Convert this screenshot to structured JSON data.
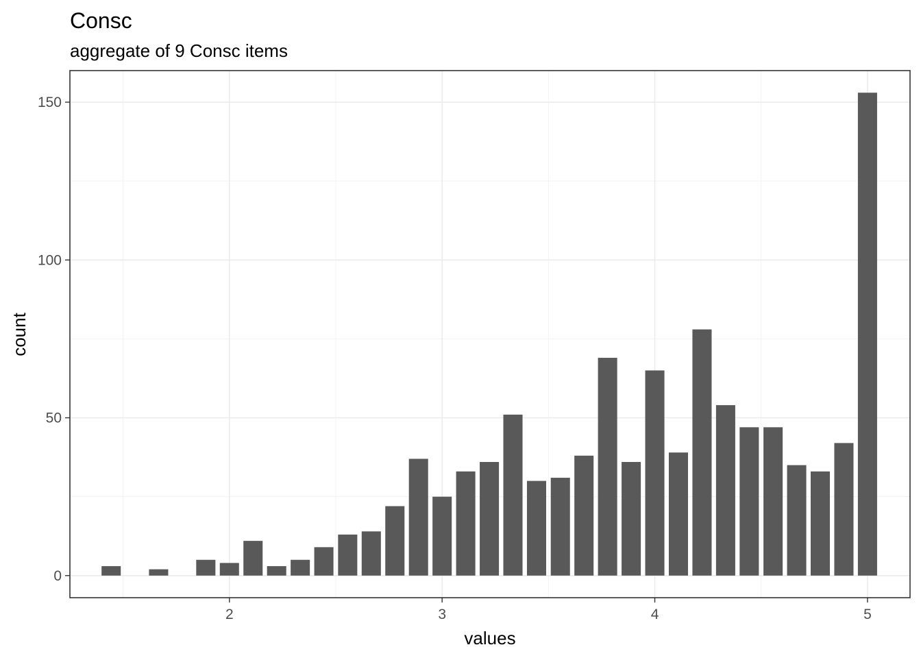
{
  "chart_data": {
    "type": "bar",
    "title": "Consc",
    "subtitle": "aggregate of 9 Consc items",
    "xlabel": "values",
    "ylabel": "count",
    "xlim": [
      1.25,
      5.2
    ],
    "ylim": [
      -7,
      160
    ],
    "x_ticks": [
      2,
      3,
      4,
      5
    ],
    "y_ticks": [
      0,
      50,
      100,
      150
    ],
    "bar_width": 0.1,
    "grid": true,
    "bar_color": "#595959",
    "x": [
      1.444,
      1.667,
      1.889,
      2.0,
      2.111,
      2.222,
      2.333,
      2.444,
      2.556,
      2.667,
      2.778,
      2.889,
      3.0,
      3.111,
      3.222,
      3.333,
      3.444,
      3.556,
      3.667,
      3.778,
      3.889,
      4.0,
      4.111,
      4.222,
      4.333,
      4.444,
      4.556,
      4.667,
      4.778,
      4.889,
      5.0
    ],
    "values": [
      3,
      2,
      5,
      4,
      11,
      3,
      5,
      9,
      13,
      14,
      22,
      37,
      25,
      33,
      36,
      51,
      30,
      31,
      38,
      69,
      36,
      65,
      39,
      78,
      54,
      47,
      47,
      35,
      33,
      42,
      153
    ]
  }
}
